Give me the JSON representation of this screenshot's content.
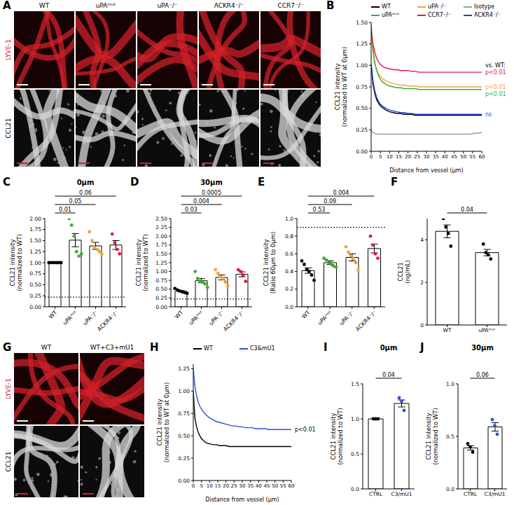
{
  "images": [
    {
      "panel": "A",
      "columns": [
        "WT",
        "uPAᵐᵘᵗ",
        "uPA⁻/⁻",
        "ACKR4⁻/⁻",
        "CCR7⁻/⁻"
      ],
      "rows": [
        "LYVE-1",
        "CCL21"
      ]
    },
    {
      "panel": "G",
      "columns": [
        "WT",
        "WT+C3+mU1"
      ],
      "rows": [
        "LYVE-1",
        "CCL21"
      ]
    }
  ],
  "chart_data": [
    {
      "panel": "B",
      "type": "line",
      "grid": false,
      "legend": "top",
      "x_label": "Distance from vessel (µm)",
      "y_label": "CCL21 intensity (normalized to WT at 0µm)",
      "x": [
        0,
        1,
        2,
        3,
        4,
        5,
        6,
        8,
        10,
        12,
        14,
        16,
        18,
        20,
        22,
        24,
        26,
        28,
        30,
        32,
        34,
        36,
        38,
        40,
        42,
        44,
        46,
        48,
        50,
        52,
        54,
        56,
        58,
        60
      ],
      "xlim": [
        0,
        60
      ],
      "xticks": [
        0,
        5,
        10,
        15,
        20,
        25,
        30,
        35,
        40,
        45,
        50,
        55,
        60
      ],
      "ylim": [
        0,
        1.5
      ],
      "yticks": [
        {
          "value": 0,
          "label": "0.00"
        },
        0.25,
        {
          "value": 0.5,
          "label": "0.50"
        },
        0.75,
        {
          "value": 1,
          "label": "1.00"
        },
        1.25,
        {
          "value": 1.5,
          "label": "1.50"
        }
      ],
      "series": [
        {
          "name": "WT",
          "color": "#000000",
          "values": [
            1.0,
            0.78,
            0.67,
            0.6,
            0.56,
            0.53,
            0.51,
            0.48,
            0.46,
            0.45,
            0.44,
            0.44,
            0.43,
            0.43,
            0.43,
            0.42,
            0.42,
            0.42,
            0.42,
            0.42,
            0.42,
            0.42,
            0.42,
            0.42,
            0.42,
            0.42,
            0.42,
            0.42,
            0.42,
            0.42,
            0.42,
            0.42,
            0.42,
            0.42
          ]
        },
        {
          "name": "uPA⁻/⁻",
          "color": "#f2a33a",
          "values": [
            1.38,
            1.15,
            1.02,
            0.95,
            0.9,
            0.87,
            0.85,
            0.82,
            0.8,
            0.79,
            0.78,
            0.77,
            0.77,
            0.76,
            0.76,
            0.76,
            0.75,
            0.75,
            0.75,
            0.75,
            0.75,
            0.75,
            0.75,
            0.75,
            0.75,
            0.75,
            0.75,
            0.75,
            0.75,
            0.75,
            0.75,
            0.75,
            0.75,
            0.75
          ]
        },
        {
          "name": "Isotype",
          "color": "#9e9e9e",
          "values": [
            0.24,
            0.22,
            0.21,
            0.2,
            0.2,
            0.2,
            0.2,
            0.2,
            0.2,
            0.2,
            0.2,
            0.2,
            0.2,
            0.2,
            0.2,
            0.2,
            0.2,
            0.2,
            0.2,
            0.2,
            0.2,
            0.2,
            0.2,
            0.2,
            0.2,
            0.2,
            0.2,
            0.2,
            0.2,
            0.2,
            0.2,
            0.21,
            0.21,
            0.22
          ]
        },
        {
          "name": "uPAᵐᵘᵗ",
          "color": "#3daa3a",
          "values": [
            1.48,
            1.2,
            1.03,
            0.94,
            0.88,
            0.84,
            0.81,
            0.78,
            0.76,
            0.75,
            0.74,
            0.74,
            0.73,
            0.73,
            0.73,
            0.73,
            0.72,
            0.72,
            0.72,
            0.72,
            0.72,
            0.72,
            0.72,
            0.72,
            0.72,
            0.72,
            0.72,
            0.72,
            0.72,
            0.72,
            0.72,
            0.72,
            0.72,
            0.72
          ]
        },
        {
          "name": "CCR7⁻/⁻",
          "color": "#e5173f",
          "values": [
            1.4,
            1.25,
            1.15,
            1.08,
            1.04,
            1.01,
            0.99,
            0.97,
            0.96,
            0.95,
            0.95,
            0.94,
            0.94,
            0.94,
            0.93,
            0.93,
            0.92,
            0.92,
            0.92,
            0.92,
            0.92,
            0.92,
            0.92,
            0.92,
            0.92,
            0.92,
            0.92,
            0.92,
            0.92,
            0.92,
            0.92,
            0.92,
            0.92,
            0.92
          ]
        },
        {
          "name": "ACKR4⁻/⁻",
          "color": "#1f3fd1",
          "values": [
            1.02,
            0.82,
            0.7,
            0.63,
            0.58,
            0.55,
            0.53,
            0.5,
            0.48,
            0.47,
            0.46,
            0.45,
            0.45,
            0.44,
            0.44,
            0.43,
            0.43,
            0.43,
            0.43,
            0.43,
            0.43,
            0.43,
            0.43,
            0.43,
            0.43,
            0.43,
            0.43,
            0.43,
            0.43,
            0.43,
            0.43,
            0.43,
            0.43,
            0.43
          ]
        }
      ],
      "annotations": [
        {
          "text": "vs. WT:"
        },
        {
          "series": "CCR7⁻/⁻",
          "text": "p<0.01",
          "color": "#e5173f"
        },
        {
          "series": "uPAᵐᵘᵗ",
          "text": "p<0.01",
          "color": "#3daa3a"
        },
        {
          "series": "uPA⁻/⁻",
          "text": "p<0.01",
          "color": "#f2a33a"
        },
        {
          "series": "ACKR4⁻/⁻",
          "text": "ns",
          "color": "#1f3fd1"
        }
      ]
    },
    {
      "panel": "C",
      "type": "bar",
      "grid": false,
      "title": "0µm",
      "y_label": "CCL21 intensity (normalized to WT)",
      "categories": [
        "WT",
        "uPAᵐᵘᵗ",
        "uPA⁻/⁻",
        "ACKR4⁻/⁻"
      ],
      "values": [
        1.0,
        1.51,
        1.38,
        1.4
      ],
      "errors": [
        0,
        0.15,
        0.08,
        0.1
      ],
      "points": [
        [
          1,
          1,
          1,
          1,
          1,
          1
        ],
        [
          2.0,
          1.85,
          1.6,
          1.25,
          1.15,
          1.2
        ],
        [
          1.7,
          1.5,
          1.35,
          1.3,
          1.25,
          1.2
        ],
        [
          1.65,
          1.45,
          1.3,
          1.2
        ]
      ],
      "colors": [
        "#000000",
        "#3daa3a",
        "#f2a33a",
        "#e5173f"
      ],
      "ylim": [
        0,
        2
      ],
      "yticks": [
        {
          "value": 0,
          "label": "0.00"
        },
        0.25,
        {
          "value": 0.5,
          "label": "0.50"
        },
        0.75,
        {
          "value": 1,
          "label": "1.00"
        },
        1.25,
        {
          "value": 1.5,
          "label": "1.50"
        },
        1.75,
        {
          "value": 2,
          "label": "2.00"
        }
      ],
      "reference_line": 0.22,
      "significance": [
        {
          "from": "WT",
          "to": "uPAᵐᵘᵗ",
          "p": 0.01
        },
        {
          "from": "WT",
          "to": "uPA⁻/⁻",
          "p": 0.05
        },
        {
          "from": "WT",
          "to": "ACKR4⁻/⁻",
          "p": 0.06
        }
      ]
    },
    {
      "panel": "D",
      "type": "bar",
      "grid": false,
      "title": "30µm",
      "y_label": "CCL21 intensity (normalized to WT)",
      "categories": [
        "WT",
        "uPAᵐᵘᵗ",
        "uPA⁻/⁻",
        "ACKR4⁻/⁻"
      ],
      "values": [
        0.44,
        0.74,
        0.83,
        0.92
      ],
      "errors": [
        0.02,
        0.06,
        0.07,
        0.07
      ],
      "points": [
        [
          0.52,
          0.48,
          0.45,
          0.42,
          0.4,
          0.38
        ],
        [
          1.0,
          0.8,
          0.72,
          0.7,
          0.65,
          0.55
        ],
        [
          1.05,
          0.95,
          0.85,
          0.8,
          0.7,
          0.6
        ],
        [
          1.05,
          1.0,
          0.9,
          0.72
        ]
      ],
      "colors": [
        "#000000",
        "#3daa3a",
        "#f2a33a",
        "#e5173f"
      ],
      "ylim": [
        0,
        2.5
      ],
      "yticks": [
        {
          "value": 0,
          "label": "0.00"
        },
        0.25,
        {
          "value": 0.5,
          "label": "0.50"
        },
        0.75,
        {
          "value": 1,
          "label": "1.00"
        },
        1.25,
        {
          "value": 1.5,
          "label": "1.50"
        },
        1.75,
        {
          "value": 2,
          "label": "2.00"
        },
        2.25,
        {
          "value": 2.5,
          "label": "2.50"
        }
      ],
      "reference_line": 0.22,
      "significance": [
        {
          "from": "WT",
          "to": "uPAᵐᵘᵗ",
          "p": 0.03
        },
        {
          "from": "WT",
          "to": "uPA⁻/⁻",
          "p": 0.004
        },
        {
          "from": "WT",
          "to": "ACKR4⁻/⁻",
          "p": 0.0005
        }
      ]
    },
    {
      "panel": "E",
      "type": "bar",
      "grid": false,
      "y_label": "CCL21 intensity (Ratio 60µm to 0µm)",
      "categories": [
        "WT",
        "uPAᵐᵘᵗ",
        "uPA⁻/⁻",
        "ACKR4⁻/⁻"
      ],
      "values": [
        0.41,
        0.5,
        0.56,
        0.66
      ],
      "errors": [
        0.03,
        0.02,
        0.04,
        0.05
      ],
      "points": [
        [
          0.52,
          0.48,
          0.42,
          0.4,
          0.36,
          0.3
        ],
        [
          0.55,
          0.53,
          0.5,
          0.48,
          0.46,
          0.45
        ],
        [
          0.68,
          0.62,
          0.58,
          0.55,
          0.5,
          0.42
        ],
        [
          0.8,
          0.7,
          0.6,
          0.55
        ]
      ],
      "colors": [
        "#000000",
        "#3daa3a",
        "#f2a33a",
        "#e5173f"
      ],
      "ylim": [
        0,
        1
      ],
      "yticks": [
        {
          "value": 0,
          "label": "0.0"
        },
        0.2,
        0.4,
        0.6,
        0.8,
        {
          "value": 1,
          "label": "1.0"
        }
      ],
      "reference_line": 0.9,
      "significance": [
        {
          "from": "WT",
          "to": "uPAᵐᵘᵗ",
          "p": 0.53
        },
        {
          "from": "WT",
          "to": "uPA⁻/⁻",
          "p": 0.09
        },
        {
          "from": "WT",
          "to": "ACKR4⁻/⁻",
          "p": 0.004
        }
      ]
    },
    {
      "panel": "F",
      "type": "bar",
      "grid": false,
      "y_label": "CCL21 (ng/mL)",
      "categories": [
        "WT",
        "uPAᵐᵘᵗ"
      ],
      "values": [
        4.4,
        3.4
      ],
      "errors": [
        0.3,
        0.15
      ],
      "points": [
        [
          5.0,
          4.6,
          4.3,
          3.7
        ],
        [
          3.8,
          3.4,
          3.3,
          3.1
        ]
      ],
      "colors": [
        "#000000",
        "#000000"
      ],
      "ylim": [
        0,
        5
      ],
      "yticks": [
        0,
        2,
        4
      ],
      "significance": [
        {
          "from": "WT",
          "to": "uPAᵐᵘᵗ",
          "p": 0.04
        }
      ]
    },
    {
      "panel": "H",
      "type": "line",
      "grid": false,
      "legend": "top",
      "x_label": "Distance from vessel (µm)",
      "y_label": "CCL21 intensity (normalized to WT at 0µm)",
      "x": [
        0,
        1,
        2,
        3,
        4,
        5,
        6,
        8,
        10,
        12,
        14,
        16,
        18,
        20,
        22,
        24,
        26,
        28,
        30,
        32,
        34,
        36,
        38,
        40,
        42,
        44,
        46,
        48,
        50,
        52,
        54,
        56,
        58,
        60
      ],
      "xlim": [
        0,
        60
      ],
      "xticks": [
        0,
        5,
        10,
        15,
        20,
        25,
        30,
        35,
        40,
        45,
        50,
        55,
        60
      ],
      "ylim": [
        0,
        1.3
      ],
      "yticks": [
        {
          "value": 0,
          "label": "0.00"
        },
        0.25,
        {
          "value": 0.5,
          "label": "0.50"
        },
        0.75,
        {
          "value": 1,
          "label": "1.00"
        },
        1.25
      ],
      "series": [
        {
          "name": "WT",
          "color": "#000000",
          "values": [
            1.0,
            0.7,
            0.6,
            0.54,
            0.5,
            0.47,
            0.45,
            0.42,
            0.41,
            0.4,
            0.4,
            0.39,
            0.39,
            0.39,
            0.38,
            0.38,
            0.38,
            0.38,
            0.38,
            0.38,
            0.38,
            0.38,
            0.38,
            0.38,
            0.38,
            0.38,
            0.38,
            0.38,
            0.38,
            0.38,
            0.38,
            0.38,
            0.38,
            0.38
          ]
        },
        {
          "name": "C3&mU1",
          "color": "#2f4fd8",
          "values": [
            1.25,
            1.05,
            0.95,
            0.88,
            0.83,
            0.8,
            0.77,
            0.73,
            0.7,
            0.68,
            0.66,
            0.65,
            0.64,
            0.63,
            0.62,
            0.61,
            0.61,
            0.6,
            0.6,
            0.59,
            0.59,
            0.59,
            0.58,
            0.58,
            0.58,
            0.58,
            0.57,
            0.57,
            0.57,
            0.57,
            0.57,
            0.57,
            0.57,
            0.57
          ]
        }
      ],
      "annotations": [
        {
          "series": "C3&mU1",
          "text": "p<0.01",
          "color": "#000000"
        }
      ]
    },
    {
      "panel": "I",
      "type": "bar",
      "grid": false,
      "title": "0µm",
      "y_label": "CCL21 intensity (normalized to WT)",
      "categories": [
        "CTRL",
        "C3/mU1"
      ],
      "values": [
        1.0,
        1.22
      ],
      "errors": [
        0,
        0.05
      ],
      "points": [
        [
          1,
          1,
          1
        ],
        [
          1.3,
          1.25,
          1.12
        ]
      ],
      "colors": [
        "#000000",
        "#2f4fd8"
      ],
      "ylim": [
        0,
        1.5
      ],
      "yticks": [
        {
          "value": 0,
          "label": "0.0"
        },
        0.5,
        {
          "value": 1,
          "label": "1.0"
        },
        1.5
      ],
      "significance": [
        {
          "from": "CTRL",
          "to": "C3/mU1",
          "p": 0.04
        }
      ]
    },
    {
      "panel": "J",
      "type": "bar",
      "grid": false,
      "title": "30µm",
      "y_label": "CCL21 intensity (normalized to WT)",
      "categories": [
        "CTRL",
        "C3/mU1"
      ],
      "values": [
        0.39,
        0.59
      ],
      "errors": [
        0.02,
        0.04
      ],
      "points": [
        [
          0.43,
          0.4,
          0.35
        ],
        [
          0.66,
          0.6,
          0.52
        ]
      ],
      "colors": [
        "#000000",
        "#2f4fd8"
      ],
      "ylim": [
        0,
        1
      ],
      "yticks": [
        {
          "value": 0,
          "label": "0.0"
        },
        0.5,
        {
          "value": 1,
          "label": "1.0"
        }
      ],
      "significance": [
        {
          "from": "CTRL",
          "to": "C3/mU1",
          "p": 0.06
        }
      ]
    }
  ]
}
